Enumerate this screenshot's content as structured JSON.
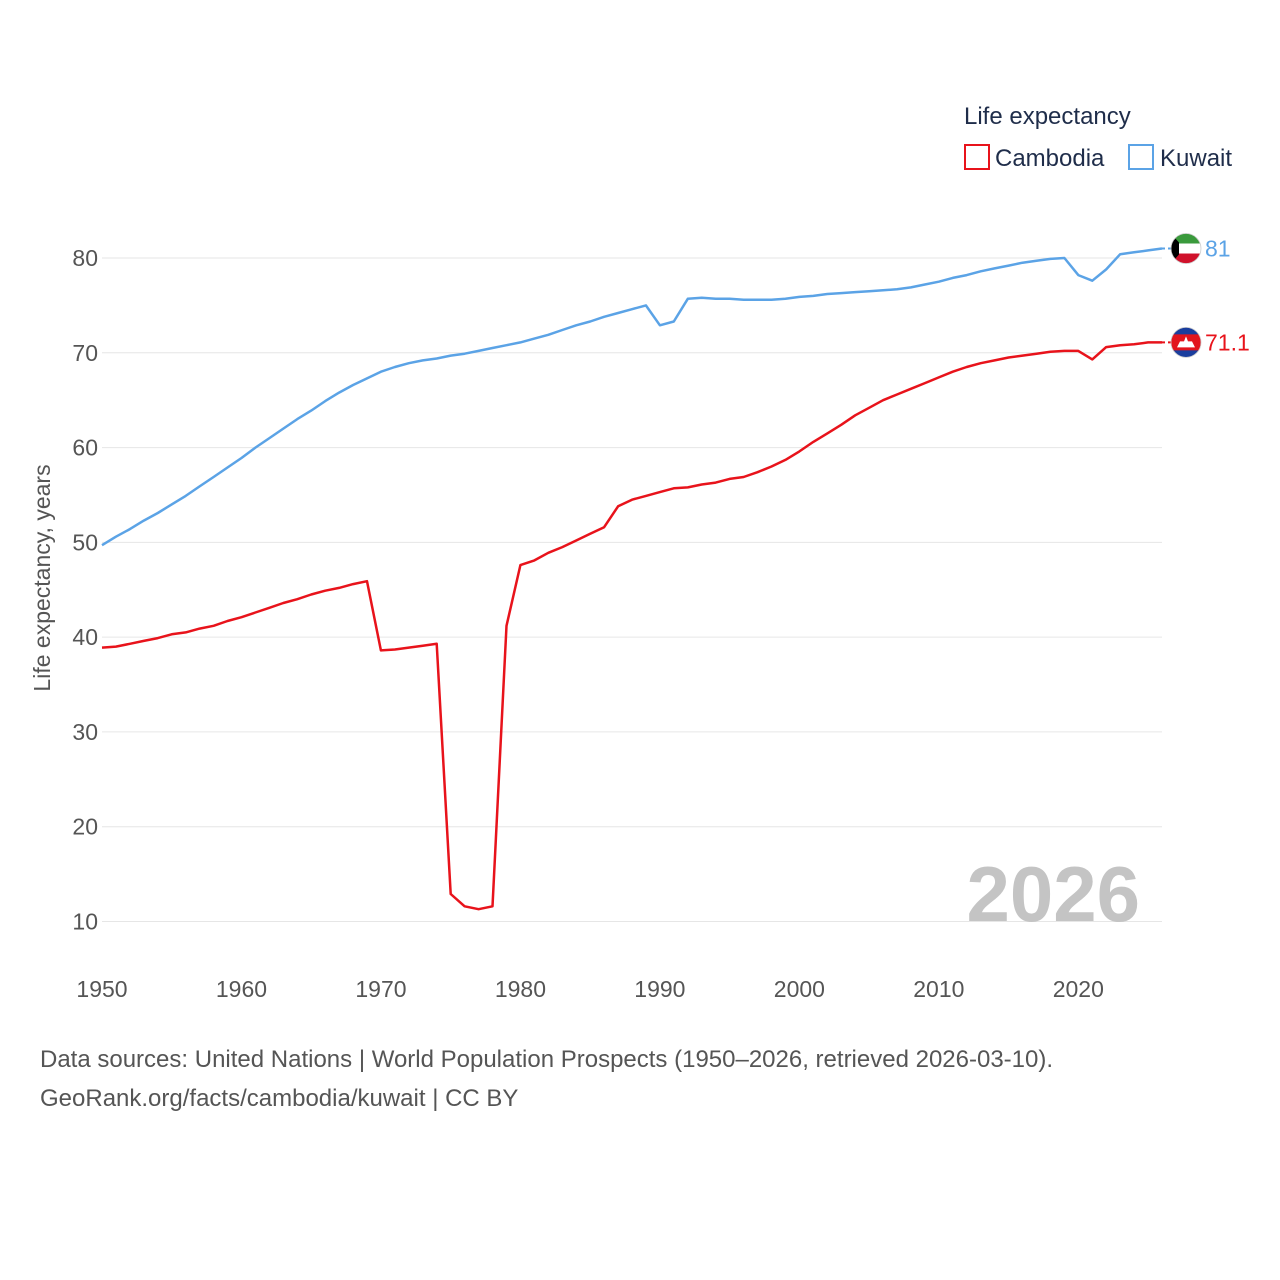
{
  "chart_data": {
    "type": "line",
    "legend": {
      "title": "Life expectancy",
      "placement": "top-right"
    },
    "ylabel": "Life expectancy, years",
    "xlim": [
      1950,
      2026
    ],
    "ylim": [
      5,
      88
    ],
    "yticks": [
      10,
      20,
      30,
      40,
      50,
      60,
      70,
      80
    ],
    "xticks": [
      1950,
      1960,
      1970,
      1980,
      1990,
      2000,
      2010,
      2020
    ],
    "ytick_labels": [
      "10",
      "20",
      "30",
      "40",
      "50",
      "60",
      "70",
      "80"
    ],
    "xtick_labels": [
      "1950",
      "1960",
      "1970",
      "1980",
      "1990",
      "2000",
      "2010",
      "2020"
    ],
    "grid": true,
    "year_label": "2026",
    "series": [
      {
        "name": "Cambodia",
        "color": "#e8131b",
        "icon": "cambodia-flag-icon",
        "end_label": "71.1",
        "x_start": 1950,
        "values": [
          38.9,
          39.0,
          39.3,
          39.6,
          39.9,
          40.3,
          40.5,
          40.9,
          41.2,
          41.7,
          42.1,
          42.6,
          43.1,
          43.6,
          44.0,
          44.5,
          44.9,
          45.2,
          45.6,
          45.9,
          38.6,
          38.7,
          38.9,
          39.1,
          39.3,
          12.9,
          11.6,
          11.3,
          11.6,
          41.2,
          47.6,
          48.1,
          48.9,
          49.5,
          50.2,
          50.9,
          51.6,
          53.8,
          54.5,
          54.9,
          55.3,
          55.7,
          55.8,
          56.1,
          56.3,
          56.7,
          56.9,
          57.4,
          58.0,
          58.7,
          59.6,
          60.6,
          61.5,
          62.4,
          63.4,
          64.2,
          65.0,
          65.6,
          66.2,
          66.8,
          67.4,
          68.0,
          68.5,
          68.9,
          69.2,
          69.5,
          69.7,
          69.9,
          70.1,
          70.2,
          70.2,
          69.3,
          70.6,
          70.8,
          70.9,
          71.1,
          71.1
        ]
      },
      {
        "name": "Kuwait",
        "color": "#5ba3e6",
        "icon": "kuwait-flag-icon",
        "end_label": "81",
        "x_start": 1950,
        "values": [
          49.7,
          50.6,
          51.4,
          52.3,
          53.1,
          54.0,
          54.9,
          55.9,
          56.9,
          57.9,
          58.9,
          60.0,
          61.0,
          62.0,
          63.0,
          63.9,
          64.9,
          65.8,
          66.6,
          67.3,
          68.0,
          68.5,
          68.9,
          69.2,
          69.4,
          69.7,
          69.9,
          70.2,
          70.5,
          70.8,
          71.1,
          71.5,
          71.9,
          72.4,
          72.9,
          73.3,
          73.8,
          74.2,
          74.6,
          75.0,
          72.9,
          73.3,
          75.7,
          75.8,
          75.7,
          75.7,
          75.6,
          75.6,
          75.6,
          75.7,
          75.9,
          76.0,
          76.2,
          76.3,
          76.4,
          76.5,
          76.6,
          76.7,
          76.9,
          77.2,
          77.5,
          77.9,
          78.2,
          78.6,
          78.9,
          79.2,
          79.5,
          79.7,
          79.9,
          80.0,
          78.2,
          77.6,
          78.8,
          80.4,
          80.6,
          80.8,
          81.0
        ]
      }
    ]
  },
  "source": {
    "line1": "Data sources: United Nations | World Population Prospects (1950–2026, retrieved 2026-03-10).",
    "line2": "GeoRank.org/facts/cambodia/kuwait | CC BY"
  }
}
